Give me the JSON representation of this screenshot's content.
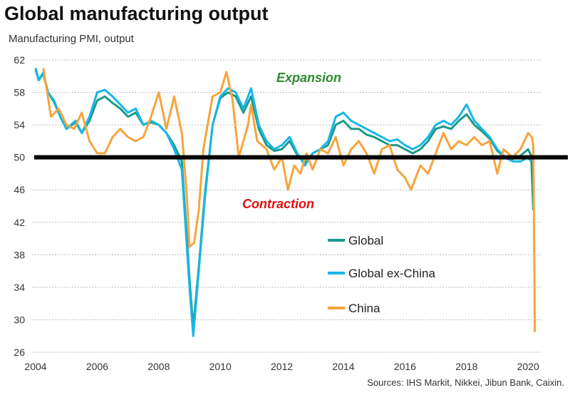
{
  "chart_data": {
    "type": "line",
    "title": "Global manufacturing output",
    "subtitle": "Manufacturing  PMI, output",
    "source": "Sources: IHS Markit, Nikkei, Jibun Bank, Caixin.",
    "ylim": [
      26,
      62
    ],
    "yticks": [
      "62",
      "58",
      "54",
      "50",
      "46",
      "42",
      "38",
      "34",
      "30",
      "26"
    ],
    "xlim": [
      2004,
      2020.5
    ],
    "xticks": [
      "2004",
      "2006",
      "2008",
      "2010",
      "2012",
      "2014",
      "2016",
      "2018",
      "2020"
    ],
    "grid": true,
    "reference_line": 50,
    "annotations": {
      "expansion": "Expansion",
      "contraction": "Contraction"
    },
    "legend_position": "bottom-right",
    "series": [
      {
        "name": "Global",
        "color": "#1a9a8a",
        "points": [
          [
            2004.0,
            60.8
          ],
          [
            2004.1,
            59.5
          ],
          [
            2004.25,
            60.3
          ],
          [
            2004.4,
            58
          ],
          [
            2004.6,
            56.8
          ],
          [
            2004.8,
            55
          ],
          [
            2005.0,
            53.5
          ],
          [
            2005.3,
            54.3
          ],
          [
            2005.5,
            53
          ],
          [
            2005.75,
            54.5
          ],
          [
            2006.0,
            57
          ],
          [
            2006.25,
            57.5
          ],
          [
            2006.5,
            56.7
          ],
          [
            2006.75,
            56
          ],
          [
            2007.0,
            55
          ],
          [
            2007.25,
            55.5
          ],
          [
            2007.5,
            54
          ],
          [
            2007.75,
            54.3
          ],
          [
            2008.0,
            54
          ],
          [
            2008.25,
            53
          ],
          [
            2008.5,
            51.5
          ],
          [
            2008.75,
            49.5
          ],
          [
            2009.0,
            35
          ],
          [
            2009.12,
            29
          ],
          [
            2009.3,
            36.5
          ],
          [
            2009.5,
            45.5
          ],
          [
            2009.75,
            54
          ],
          [
            2010.0,
            57.3
          ],
          [
            2010.25,
            58
          ],
          [
            2010.5,
            57.5
          ],
          [
            2010.75,
            55.5
          ],
          [
            2011.0,
            57.5
          ],
          [
            2011.25,
            53.5
          ],
          [
            2011.5,
            51.5
          ],
          [
            2011.75,
            50.8
          ],
          [
            2012.0,
            51
          ],
          [
            2012.25,
            52
          ],
          [
            2012.5,
            50.3
          ],
          [
            2012.75,
            49.3
          ],
          [
            2013.0,
            50.5
          ],
          [
            2013.25,
            51
          ],
          [
            2013.5,
            51.5
          ],
          [
            2013.75,
            54
          ],
          [
            2014.0,
            54.5
          ],
          [
            2014.25,
            53.5
          ],
          [
            2014.5,
            53.5
          ],
          [
            2014.75,
            52.8
          ],
          [
            2015.0,
            52.5
          ],
          [
            2015.25,
            52
          ],
          [
            2015.5,
            51.5
          ],
          [
            2015.75,
            51.5
          ],
          [
            2016.0,
            51
          ],
          [
            2016.25,
            50.5
          ],
          [
            2016.5,
            51
          ],
          [
            2016.75,
            52
          ],
          [
            2017.0,
            53.5
          ],
          [
            2017.25,
            53.8
          ],
          [
            2017.5,
            53.5
          ],
          [
            2017.75,
            54.5
          ],
          [
            2018.0,
            55.3
          ],
          [
            2018.25,
            54
          ],
          [
            2018.5,
            53.2
          ],
          [
            2018.75,
            52.3
          ],
          [
            2019.0,
            50.8
          ],
          [
            2019.25,
            50
          ],
          [
            2019.5,
            49.8
          ],
          [
            2019.75,
            50.2
          ],
          [
            2020.0,
            51
          ],
          [
            2020.1,
            50.2
          ],
          [
            2020.17,
            43.5
          ]
        ]
      },
      {
        "name": "Global ex-China",
        "color": "#19b6e6",
        "points": [
          [
            2004.0,
            61
          ],
          [
            2004.1,
            59.5
          ],
          [
            2004.25,
            60.5
          ],
          [
            2004.4,
            58
          ],
          [
            2004.6,
            57
          ],
          [
            2004.8,
            55
          ],
          [
            2005.0,
            53.5
          ],
          [
            2005.3,
            54.5
          ],
          [
            2005.5,
            53
          ],
          [
            2005.75,
            55
          ],
          [
            2006.0,
            58
          ],
          [
            2006.25,
            58.3
          ],
          [
            2006.5,
            57.5
          ],
          [
            2006.75,
            56.5
          ],
          [
            2007.0,
            55.5
          ],
          [
            2007.25,
            56
          ],
          [
            2007.5,
            54
          ],
          [
            2007.75,
            54.5
          ],
          [
            2008.0,
            54
          ],
          [
            2008.25,
            53
          ],
          [
            2008.5,
            51
          ],
          [
            2008.75,
            48.5
          ],
          [
            2009.0,
            34
          ],
          [
            2009.12,
            28
          ],
          [
            2009.3,
            36
          ],
          [
            2009.5,
            45
          ],
          [
            2009.75,
            54
          ],
          [
            2010.0,
            57.5
          ],
          [
            2010.25,
            58.5
          ],
          [
            2010.5,
            58
          ],
          [
            2010.75,
            56
          ],
          [
            2011.0,
            58.5
          ],
          [
            2011.25,
            54
          ],
          [
            2011.5,
            52
          ],
          [
            2011.75,
            51
          ],
          [
            2012.0,
            51.5
          ],
          [
            2012.25,
            52.5
          ],
          [
            2012.5,
            50.5
          ],
          [
            2012.75,
            49
          ],
          [
            2013.0,
            50.5
          ],
          [
            2013.25,
            51
          ],
          [
            2013.5,
            52
          ],
          [
            2013.75,
            55
          ],
          [
            2014.0,
            55.5
          ],
          [
            2014.25,
            54.5
          ],
          [
            2014.5,
            54
          ],
          [
            2014.75,
            53.5
          ],
          [
            2015.0,
            53
          ],
          [
            2015.25,
            52.5
          ],
          [
            2015.5,
            52
          ],
          [
            2015.75,
            52.2
          ],
          [
            2016.0,
            51.5
          ],
          [
            2016.25,
            51
          ],
          [
            2016.5,
            51.5
          ],
          [
            2016.75,
            52.5
          ],
          [
            2017.0,
            54
          ],
          [
            2017.25,
            54.5
          ],
          [
            2017.5,
            54
          ],
          [
            2017.75,
            55
          ],
          [
            2018.0,
            56.5
          ],
          [
            2018.25,
            54.5
          ],
          [
            2018.5,
            53.5
          ],
          [
            2018.75,
            52.5
          ],
          [
            2019.0,
            51
          ],
          [
            2019.25,
            50
          ],
          [
            2019.5,
            49.5
          ],
          [
            2019.75,
            49.5
          ],
          [
            2020.0,
            50
          ],
          [
            2020.1,
            49.5
          ]
        ]
      },
      {
        "name": "China",
        "color": "#f7a43c",
        "points": [
          [
            2004.25,
            61
          ],
          [
            2004.5,
            55
          ],
          [
            2004.75,
            56
          ],
          [
            2005.0,
            54
          ],
          [
            2005.25,
            53.5
          ],
          [
            2005.5,
            55.5
          ],
          [
            2005.75,
            52
          ],
          [
            2006.0,
            50.5
          ],
          [
            2006.25,
            50.5
          ],
          [
            2006.5,
            52.5
          ],
          [
            2006.75,
            53.5
          ],
          [
            2007.0,
            52.5
          ],
          [
            2007.25,
            52
          ],
          [
            2007.5,
            52.5
          ],
          [
            2007.75,
            55
          ],
          [
            2008.0,
            58
          ],
          [
            2008.25,
            53.5
          ],
          [
            2008.5,
            57.5
          ],
          [
            2008.75,
            53
          ],
          [
            2008.9,
            46
          ],
          [
            2009.0,
            39
          ],
          [
            2009.15,
            39.5
          ],
          [
            2009.3,
            43.5
          ],
          [
            2009.45,
            51
          ],
          [
            2009.75,
            57.5
          ],
          [
            2010.0,
            58
          ],
          [
            2010.2,
            60.5
          ],
          [
            2010.4,
            57
          ],
          [
            2010.6,
            50
          ],
          [
            2010.9,
            54
          ],
          [
            2011.0,
            56.5
          ],
          [
            2011.2,
            52
          ],
          [
            2011.5,
            51
          ],
          [
            2011.75,
            48.5
          ],
          [
            2012.0,
            50
          ],
          [
            2012.2,
            46
          ],
          [
            2012.4,
            49
          ],
          [
            2012.6,
            48
          ],
          [
            2012.8,
            50.5
          ],
          [
            2013.0,
            48.5
          ],
          [
            2013.25,
            51
          ],
          [
            2013.5,
            50.5
          ],
          [
            2013.75,
            52.5
          ],
          [
            2014.0,
            49
          ],
          [
            2014.25,
            51
          ],
          [
            2014.5,
            52
          ],
          [
            2014.75,
            50.5
          ],
          [
            2015.0,
            48
          ],
          [
            2015.25,
            51
          ],
          [
            2015.5,
            51.5
          ],
          [
            2015.75,
            48.5
          ],
          [
            2016.0,
            47.5
          ],
          [
            2016.2,
            46
          ],
          [
            2016.5,
            49
          ],
          [
            2016.75,
            48
          ],
          [
            2017.0,
            50.5
          ],
          [
            2017.25,
            53
          ],
          [
            2017.5,
            51
          ],
          [
            2017.75,
            52
          ],
          [
            2018.0,
            51.5
          ],
          [
            2018.25,
            52.5
          ],
          [
            2018.5,
            51.5
          ],
          [
            2018.75,
            52
          ],
          [
            2019.0,
            48
          ],
          [
            2019.2,
            51
          ],
          [
            2019.5,
            50
          ],
          [
            2019.75,
            51
          ],
          [
            2020.0,
            53
          ],
          [
            2020.12,
            52.5
          ],
          [
            2020.17,
            51.5
          ],
          [
            2020.22,
            28.5
          ]
        ]
      }
    ]
  }
}
